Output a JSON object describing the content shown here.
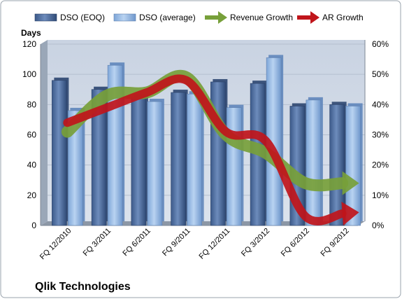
{
  "chart_data": {
    "type": "bar",
    "title": "",
    "footer_label": "Qlik Technologies",
    "ylabel": "Days",
    "y2label": "",
    "ylim": [
      0,
      120
    ],
    "y2lim": [
      0,
      0.6
    ],
    "yticks": [
      "0",
      "20",
      "40",
      "60",
      "80",
      "100",
      "120"
    ],
    "y2ticks": [
      "0%",
      "10%",
      "20%",
      "30%",
      "40%",
      "50%",
      "60%"
    ],
    "categories": [
      "FQ 12/2010",
      "FQ 3/2011",
      "FQ 6/2011",
      "FQ 9/2011",
      "FQ 12/2011",
      "FQ 3/2012",
      "FQ 6/2012",
      "FQ 9/2012"
    ],
    "series": [
      {
        "name": "DSO (EOQ)",
        "kind": "bar",
        "axis": "left",
        "color": "#4f6fa0",
        "values": [
          96,
          90,
          85,
          88,
          95,
          94,
          79,
          80
        ]
      },
      {
        "name": "DSO (average)",
        "kind": "bar",
        "axis": "left",
        "color": "#8fb4e3",
        "values": [
          76,
          106,
          82,
          87,
          78,
          111,
          83,
          79
        ]
      },
      {
        "name": "Revenue Growth",
        "kind": "arrow-line",
        "axis": "right",
        "color": "#77a03a",
        "values": [
          0.31,
          0.43,
          0.44,
          0.49,
          0.3,
          0.24,
          0.14,
          0.14
        ]
      },
      {
        "name": "AR Growth",
        "kind": "arrow-line",
        "axis": "right",
        "color": "#c0151b",
        "values": [
          0.34,
          0.39,
          0.44,
          0.48,
          0.31,
          0.28,
          0.03,
          0.04
        ]
      }
    ],
    "grid": true,
    "legend_position": "top",
    "colors": {
      "plot_bg": "#cfd8e6",
      "wall": "#9aa7b8",
      "frame": "#9aa3ad"
    }
  }
}
